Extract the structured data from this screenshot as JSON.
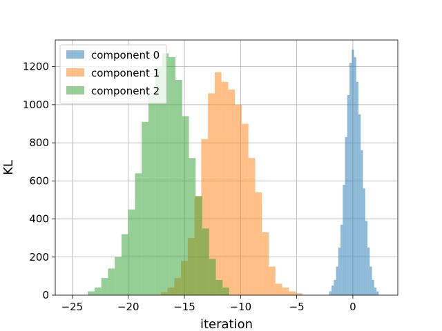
{
  "chart_data": {
    "type": "histogram",
    "title": "",
    "xlabel": "iteration",
    "ylabel": "KL",
    "xlim": [
      -26.5,
      4.0
    ],
    "ylim": [
      0,
      1340
    ],
    "xticks": [
      -25,
      -20,
      -15,
      -10,
      -5,
      0
    ],
    "xtick_labels": [
      "−25",
      "−20",
      "−15",
      "−10",
      "−5",
      "0"
    ],
    "yticks": [
      0,
      200,
      400,
      600,
      800,
      1000,
      1200
    ],
    "ytick_labels": [
      "0",
      "200",
      "400",
      "600",
      "800",
      "1000",
      "1200"
    ],
    "grid": true,
    "legend_position": "upper-left",
    "alpha": 0.5,
    "series": [
      {
        "name": "component 0",
        "color": "#1f77b4",
        "bin_start": -2.1,
        "bin_width": 0.2,
        "counts": [
          20,
          50,
          80,
          150,
          250,
          370,
          580,
          830,
          1050,
          1220,
          1290,
          1250,
          1120,
          950,
          760,
          560,
          390,
          250,
          150,
          80,
          40,
          20
        ]
      },
      {
        "name": "component 1",
        "color": "#ff7f0e",
        "bin_start": -17.1,
        "bin_width": 0.6,
        "counts": [
          15,
          40,
          90,
          180,
          300,
          520,
          820,
          1060,
          1170,
          1120,
          1080,
          1000,
          900,
          720,
          540,
          330,
          150,
          60,
          40,
          20,
          10
        ]
      },
      {
        "name": "component 2",
        "color": "#2ca02c",
        "bin_start": -23.6,
        "bin_width": 0.6,
        "counts": [
          20,
          40,
          90,
          140,
          200,
          320,
          450,
          640,
          910,
          1060,
          1200,
          1270,
          1250,
          1130,
          940,
          720,
          520,
          350,
          190,
          80,
          40
        ]
      }
    ]
  }
}
